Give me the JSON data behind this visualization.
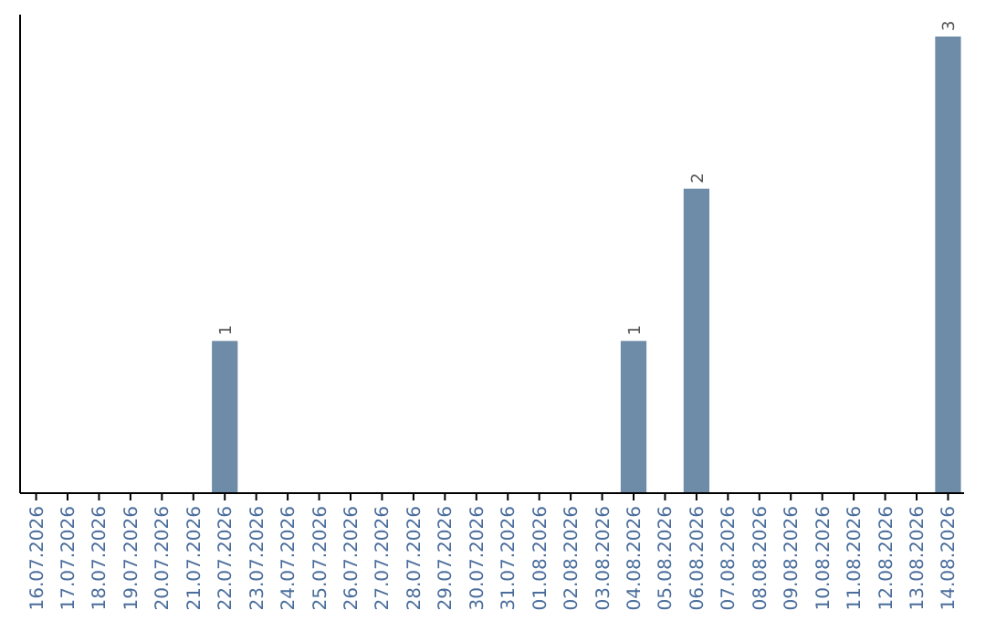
{
  "chart_data": {
    "type": "bar",
    "categories": [
      "16.07.2026",
      "17.07.2026",
      "18.07.2026",
      "19.07.2026",
      "20.07.2026",
      "21.07.2026",
      "22.07.2026",
      "23.07.2026",
      "24.07.2026",
      "25.07.2026",
      "26.07.2026",
      "27.07.2026",
      "28.07.2026",
      "29.07.2026",
      "30.07.2026",
      "31.07.2026",
      "01.08.2026",
      "02.08.2026",
      "03.08.2026",
      "04.08.2026",
      "05.08.2026",
      "06.08.2026",
      "07.08.2026",
      "08.08.2026",
      "09.08.2026",
      "10.08.2026",
      "11.08.2026",
      "12.08.2026",
      "13.08.2026",
      "14.08.2026"
    ],
    "values": [
      0,
      0,
      0,
      0,
      0,
      0,
      1,
      0,
      0,
      0,
      0,
      0,
      0,
      0,
      0,
      0,
      0,
      0,
      0,
      1,
      0,
      2,
      0,
      0,
      0,
      0,
      0,
      0,
      0,
      3
    ],
    "value_labels": [
      null,
      null,
      null,
      null,
      null,
      null,
      "1",
      null,
      null,
      null,
      null,
      null,
      null,
      null,
      null,
      null,
      null,
      null,
      null,
      "1",
      null,
      "2",
      null,
      null,
      null,
      null,
      null,
      null,
      null,
      "3"
    ],
    "color": "#6e8ca8",
    "tick_labels": "x"
  }
}
